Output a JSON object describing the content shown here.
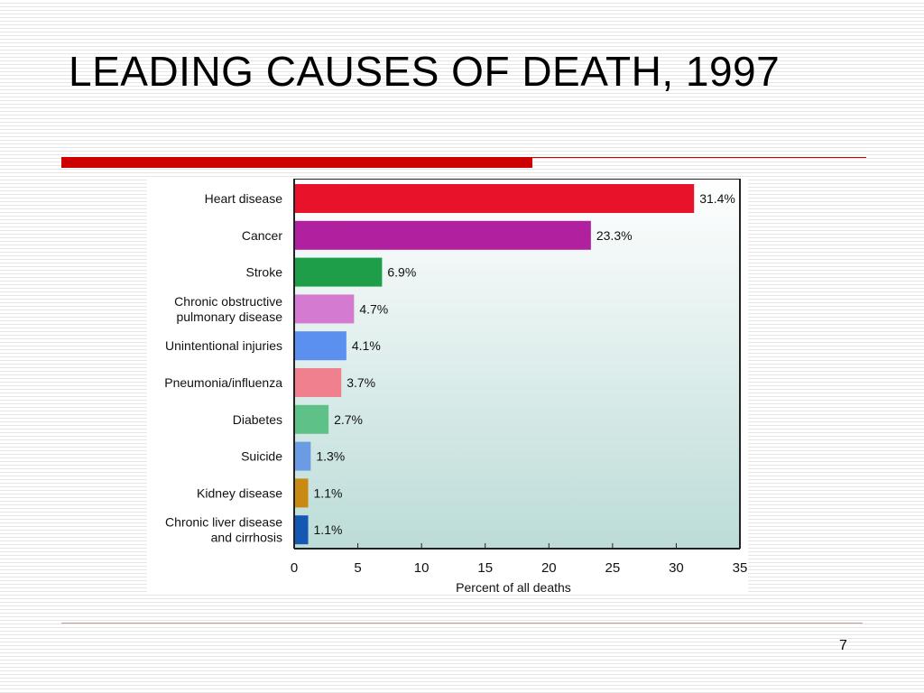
{
  "slide": {
    "title": "LEADING CAUSES OF DEATH, 1997",
    "page_number": "7"
  },
  "colors": {
    "title_rule": "#cc0000",
    "plot_background_top": "#ffffff",
    "plot_background_bottom": "#bcdcd8"
  },
  "chart_data": {
    "type": "bar",
    "orientation": "horizontal",
    "title": "",
    "xlabel": "Percent of all deaths",
    "ylabel": "",
    "xlim": [
      0,
      35
    ],
    "xticks": [
      0,
      5,
      10,
      15,
      20,
      25,
      30,
      35
    ],
    "grid": false,
    "categories": [
      [
        "Heart disease"
      ],
      [
        "Cancer"
      ],
      [
        "Stroke"
      ],
      [
        "Chronic obstructive",
        "pulmonary disease"
      ],
      [
        "Unintentional injuries"
      ],
      [
        "Pneumonia/influenza"
      ],
      [
        "Diabetes"
      ],
      [
        "Suicide"
      ],
      [
        "Kidney disease"
      ],
      [
        "Chronic liver disease",
        "and cirrhosis"
      ]
    ],
    "values": [
      31.4,
      23.3,
      6.9,
      4.7,
      4.1,
      3.7,
      2.7,
      1.3,
      1.1,
      1.1
    ],
    "value_labels": [
      "31.4%",
      "23.3%",
      "6.9%",
      "4.7%",
      "4.1%",
      "3.7%",
      "2.7%",
      "1.3%",
      "1.1%",
      "1.1%"
    ],
    "bar_colors": [
      "#e8132b",
      "#b0209f",
      "#1f9e49",
      "#d47ad0",
      "#5b8ff0",
      "#f0808e",
      "#5ec288",
      "#6b9be2",
      "#c88a12",
      "#1458b4"
    ]
  }
}
